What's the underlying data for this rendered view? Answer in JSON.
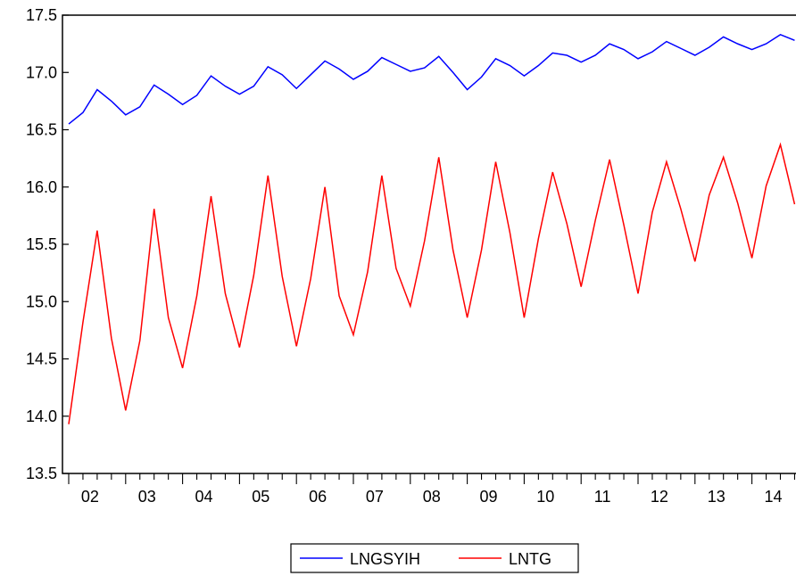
{
  "chart_data": {
    "type": "line",
    "ylim": [
      13.5,
      17.5
    ],
    "yticks": [
      13.5,
      14.0,
      14.5,
      15.0,
      15.5,
      16.0,
      16.5,
      17.0,
      17.5
    ],
    "ytick_labels": [
      "13.5",
      "14.0",
      "14.5",
      "15.0",
      "15.5",
      "16.0",
      "16.5",
      "17.0",
      "17.5"
    ],
    "x_year_labels": [
      "02",
      "03",
      "04",
      "05",
      "06",
      "07",
      "08",
      "09",
      "10",
      "11",
      "12",
      "13",
      "14"
    ],
    "x_start_year": 2002,
    "x_start_quarter": 1,
    "grid": false,
    "legend_position": "bottom-center",
    "series": [
      {
        "name": "LNGSYIH",
        "color": "#0000ff",
        "values": [
          16.55,
          16.65,
          16.85,
          16.75,
          16.63,
          16.7,
          16.89,
          16.81,
          16.72,
          16.8,
          16.97,
          16.88,
          16.81,
          16.88,
          17.05,
          16.98,
          16.86,
          16.98,
          17.1,
          17.03,
          16.94,
          17.01,
          17.13,
          17.07,
          17.01,
          17.04,
          17.14,
          17.0,
          16.85,
          16.96,
          17.12,
          17.06,
          16.97,
          17.06,
          17.17,
          17.15,
          17.09,
          17.15,
          17.25,
          17.2,
          17.12,
          17.18,
          17.27,
          17.21,
          17.15,
          17.22,
          17.31,
          17.25,
          17.2,
          17.25,
          17.33,
          17.28
        ]
      },
      {
        "name": "LNTG",
        "color": "#ff0000",
        "values": [
          13.93,
          14.82,
          15.62,
          14.68,
          14.05,
          14.66,
          15.81,
          14.86,
          14.42,
          15.05,
          15.92,
          15.07,
          14.6,
          15.23,
          16.1,
          15.22,
          14.61,
          15.2,
          16.0,
          15.05,
          14.71,
          15.26,
          16.1,
          15.29,
          14.96,
          15.53,
          16.26,
          15.45,
          14.86,
          15.45,
          16.22,
          15.6,
          14.86,
          15.55,
          16.13,
          15.68,
          15.13,
          15.71,
          16.24,
          15.67,
          15.07,
          15.78,
          16.22,
          15.81,
          15.35,
          15.93,
          16.26,
          15.86,
          15.38,
          16.01,
          16.37,
          15.85
        ]
      }
    ]
  },
  "legend": {
    "items": [
      {
        "label": "LNGSYIH",
        "color": "#0000ff"
      },
      {
        "label": "LNTG",
        "color": "#ff0000"
      }
    ]
  }
}
